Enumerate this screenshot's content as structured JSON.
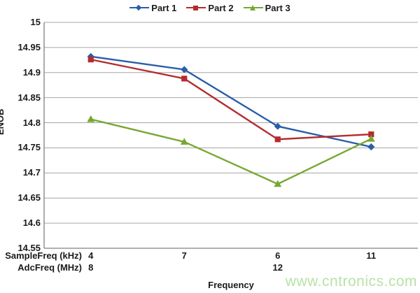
{
  "watermark": "www.cntronics.com",
  "colors": {
    "part1": "#2A5EA8",
    "part2": "#B42C2E",
    "part3": "#77A833",
    "gridline": "#A6A6A6",
    "axis_line": "#808080",
    "text": "#1A1A1A",
    "watermark": "#B9E2A7"
  },
  "chart_data": {
    "type": "line",
    "title": "",
    "xlabel": "Frequency",
    "ylabel": "ENOB",
    "ylim": [
      14.55,
      15
    ],
    "ytick_step": 0.05,
    "yticks": [
      "15",
      "14.95",
      "14.9",
      "14.85",
      "14.8",
      "14.75",
      "14.7",
      "14.65",
      "14.6",
      "14.55"
    ],
    "grid": true,
    "legend_position": "top",
    "x_axis_rows": [
      {
        "label": "SampleFreq (kHz)",
        "values": [
          "4",
          "7",
          "6",
          "11"
        ]
      },
      {
        "label": "AdcFreq (MHz)",
        "values": [
          "8",
          "",
          "12",
          ""
        ]
      }
    ],
    "series": [
      {
        "name": "Part 1",
        "marker": "diamond",
        "color": "#2A5EA8",
        "values": [
          14.932,
          14.906,
          14.793,
          14.752
        ]
      },
      {
        "name": "Part 2",
        "marker": "square",
        "color": "#B42C2E",
        "values": [
          14.926,
          14.888,
          14.767,
          14.777
        ]
      },
      {
        "name": "Part 3",
        "marker": "triangle",
        "color": "#77A833",
        "values": [
          14.807,
          14.762,
          14.678,
          14.768
        ]
      }
    ]
  }
}
